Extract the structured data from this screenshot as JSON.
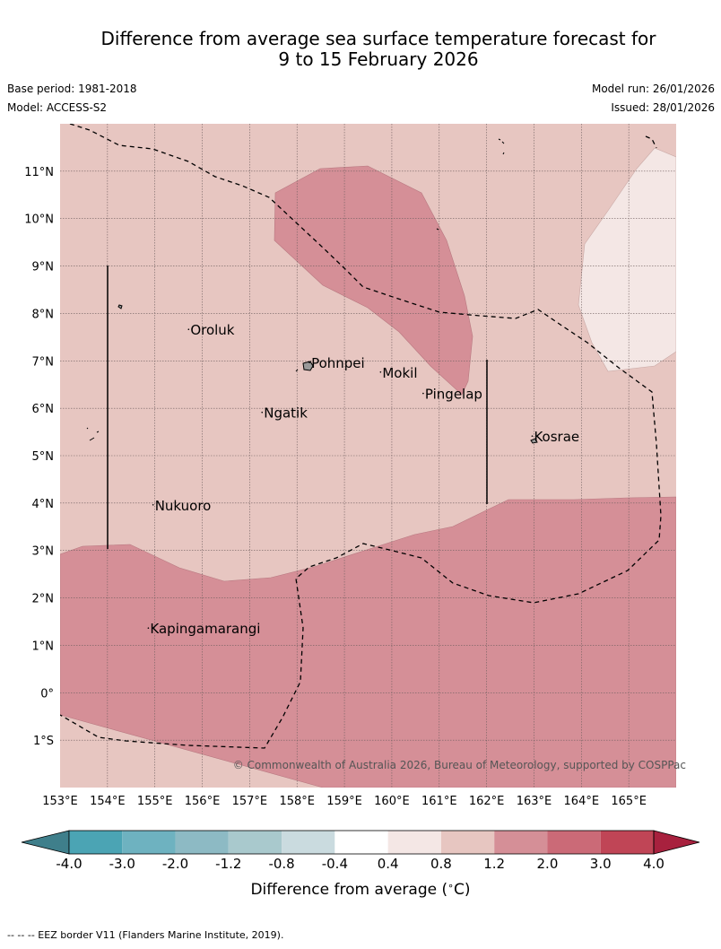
{
  "title": {
    "line1": "Difference from average sea surface temperature forecast for",
    "line2": "9 to 15 February 2026"
  },
  "meta": {
    "base_period": "Base period: 1981-2018",
    "model": "Model: ACCESS-S2",
    "model_run": "Model run: 26/01/2026",
    "issued": "Issued: 28/01/2026"
  },
  "map": {
    "lon_range": [
      153,
      166
    ],
    "lat_range": [
      -2,
      12
    ],
    "lon_labels": [
      "153°E",
      "154°E",
      "155°E",
      "156°E",
      "157°E",
      "158°E",
      "159°E",
      "160°E",
      "161°E",
      "162°E",
      "163°E",
      "164°E",
      "165°E"
    ],
    "lat_labels": [
      "11°N",
      "10°N",
      "9°N",
      "8°N",
      "7°N",
      "6°N",
      "5°N",
      "4°N",
      "3°N",
      "2°N",
      "1°N",
      "0°",
      "1°S"
    ],
    "grid": true,
    "colors": {
      "band_0_4_to_0_8": "#f4e7e5",
      "band_0_8_to_1_2": "#e7c6c1",
      "band_1_2_to_2_0": "#d58f97"
    },
    "places": [
      {
        "name": "Oroluk",
        "lon": 155.75,
        "lat": 7.55
      },
      {
        "name": "Pohnpei",
        "lon": 158.3,
        "lat": 6.85
      },
      {
        "name": "Mokil",
        "lon": 159.8,
        "lat": 6.65
      },
      {
        "name": "Pingelap",
        "lon": 160.7,
        "lat": 6.2
      },
      {
        "name": "Ngatik",
        "lon": 157.3,
        "lat": 5.8
      },
      {
        "name": "Kosrae",
        "lon": 163.0,
        "lat": 5.3
      },
      {
        "name": "Nukuoro",
        "lon": 155.0,
        "lat": 3.85
      },
      {
        "name": "Kapingamarangi",
        "lon": 154.9,
        "lat": 1.25
      }
    ],
    "copyright": "© Commonwealth of Australia 2026, Bureau of Meteorology, supported by COSPPac"
  },
  "legend": {
    "ticks": [
      "-4.0",
      "-3.0",
      "-2.0",
      "-1.2",
      "-0.8",
      "-0.4",
      "0.4",
      "0.8",
      "1.2",
      "2.0",
      "3.0",
      "4.0"
    ],
    "colors": [
      "#3f7f8b",
      "#4ba4b4",
      "#6eb2c0",
      "#8dbac4",
      "#a9c9cd",
      "#cadbdf",
      "#ffffff",
      "#f4e7e5",
      "#e7c6c1",
      "#d58f97",
      "#cb6a77",
      "#c04556",
      "#a8213e"
    ],
    "label": "Difference from average (",
    "unit": "C)"
  },
  "footer": "-- -- -- EEZ border V11 (Flanders Marine Institute, 2019)."
}
